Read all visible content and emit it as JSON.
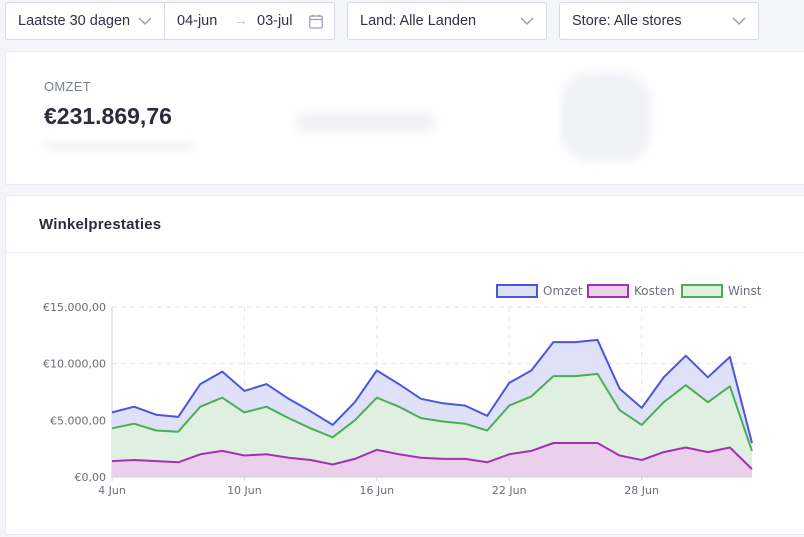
{
  "filters": {
    "period": "Laatste 30 dagen",
    "date_from": "04-jun",
    "date_arrow": "→",
    "date_to": "03-jul",
    "country": "Land: Alle Landen",
    "store": "Store: Alle stores"
  },
  "kpi": {
    "title": "OMZET",
    "value": "€231.869,76"
  },
  "performance": {
    "title": "Winkelprestaties"
  },
  "colors": {
    "omzet": "#4c55dd",
    "kosten": "#a330b6",
    "winst": "#4cae52"
  },
  "chart_data": {
    "type": "area",
    "x_labels": [
      "4 Jun",
      "10 Jun",
      "16 Jun",
      "22 Jun",
      "28 Jun"
    ],
    "x": [
      "4 Jun",
      "5 Jun",
      "6 Jun",
      "7 Jun",
      "8 Jun",
      "9 Jun",
      "10 Jun",
      "11 Jun",
      "12 Jun",
      "13 Jun",
      "14 Jun",
      "15 Jun",
      "16 Jun",
      "17 Jun",
      "18 Jun",
      "19 Jun",
      "20 Jun",
      "21 Jun",
      "22 Jun",
      "23 Jun",
      "24 Jun",
      "25 Jun",
      "26 Jun",
      "27 Jun",
      "28 Jun",
      "29 Jun",
      "30 Jun",
      "1 Jul",
      "2 Jul",
      "3 Jul"
    ],
    "y_ticks": [
      "€0,00",
      "€5.000,00",
      "€10.000,00",
      "€15.000,00"
    ],
    "ylim": [
      0,
      15000
    ],
    "legend_position": "top-right",
    "grid": true,
    "series": [
      {
        "name": "Omzet",
        "values": [
          5700,
          6200,
          5500,
          5300,
          8200,
          9300,
          7600,
          8200,
          6900,
          5800,
          4600,
          6600,
          9400,
          8200,
          6900,
          6500,
          6300,
          5400,
          8300,
          9400,
          11900,
          11900,
          12100,
          7800,
          6100,
          8800,
          10700,
          8800,
          10600,
          3000
        ]
      },
      {
        "name": "Kosten",
        "values": [
          1400,
          1500,
          1400,
          1300,
          2000,
          2300,
          1900,
          2000,
          1700,
          1500,
          1100,
          1600,
          2400,
          2000,
          1700,
          1600,
          1600,
          1300,
          2000,
          2300,
          3000,
          3000,
          3000,
          1900,
          1500,
          2200,
          2600,
          2200,
          2600,
          700
        ]
      },
      {
        "name": "Winst",
        "values": [
          4300,
          4700,
          4100,
          4000,
          6200,
          7000,
          5700,
          6200,
          5200,
          4300,
          3500,
          5000,
          7000,
          6200,
          5200,
          4900,
          4700,
          4100,
          6300,
          7100,
          8900,
          8900,
          9100,
          5900,
          4600,
          6600,
          8100,
          6600,
          8000,
          2300
        ]
      }
    ]
  }
}
